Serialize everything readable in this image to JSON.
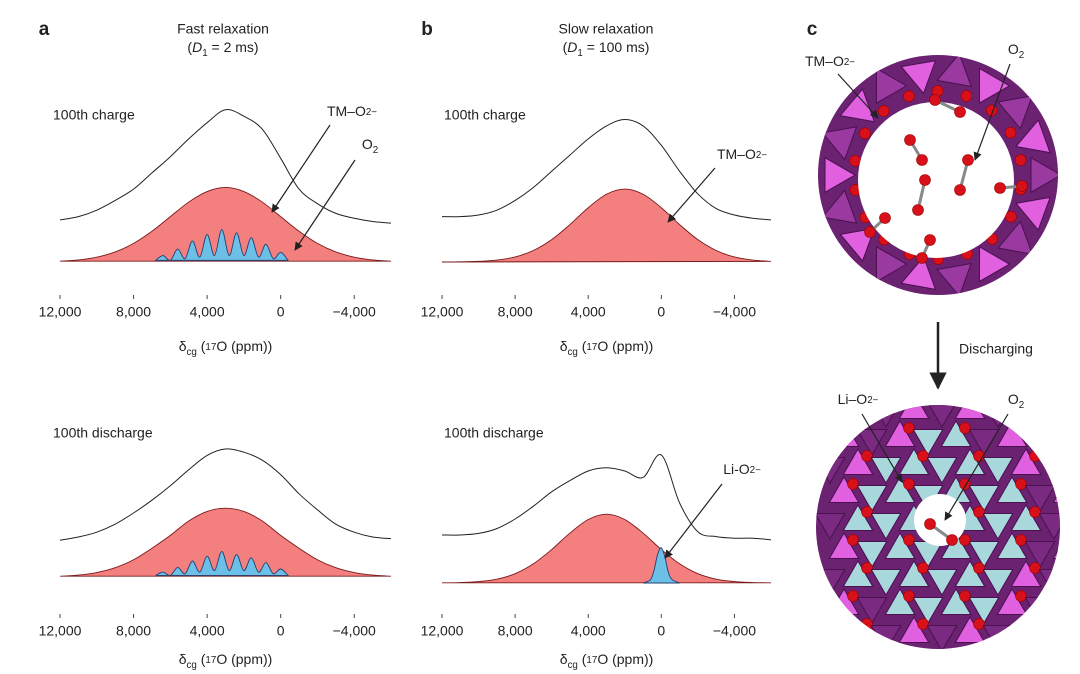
{
  "panels": [
    {
      "label": "a",
      "title": "Fast relaxation",
      "subtitle": [
        "(",
        "D",
        "1",
        " = 2 ms)"
      ]
    },
    {
      "label": "b",
      "title": "Slow relaxation",
      "subtitle": [
        "(",
        "D",
        "1",
        " = 100 ms)"
      ]
    },
    {
      "label": "c",
      "labels": [
        [
          "TM–O",
          "2−"
        ],
        [
          "O",
          "2"
        ],
        [
          "Li–O",
          "2−"
        ],
        [
          "O",
          "2"
        ]
      ],
      "arrow_text": "Discharging"
    }
  ],
  "chart_data": [
    {
      "type": "line",
      "title": "100th charge",
      "xlabel": [
        "δ",
        "cg",
        " (",
        "17",
        "O (ppm))"
      ],
      "xlim": [
        12000,
        -6000
      ],
      "ylim": [
        0,
        1
      ],
      "xticks": [
        {
          "value": 12000,
          "label": "12,000"
        },
        {
          "value": 8000,
          "label": "8,000"
        },
        {
          "value": 4000,
          "label": "4,000"
        },
        0,
        {
          "value": -4000,
          "label": "−4,000"
        }
      ],
      "annotations": [
        [
          "TM–O",
          "2−"
        ],
        [
          "O",
          "2"
        ]
      ],
      "series": [
        {
          "style": "line",
          "color": "#222",
          "x": [
            12000,
            11000,
            10000,
            9000,
            8000,
            7000,
            6000,
            5000,
            4000,
            3000,
            2000,
            1000,
            0,
            -1000,
            -2000,
            -3000,
            -4000,
            -5000,
            -6000
          ],
          "values": [
            0.26,
            0.28,
            0.32,
            0.38,
            0.45,
            0.55,
            0.65,
            0.76,
            0.86,
            0.94,
            0.9,
            0.82,
            0.64,
            0.45,
            0.36,
            0.3,
            0.27,
            0.25,
            0.24
          ]
        },
        {
          "style": "area",
          "color": "#f47f7f",
          "x": [
            12000,
            11000,
            10000,
            9000,
            8000,
            7000,
            6000,
            5000,
            4000,
            3000,
            2000,
            1000,
            0,
            -1000,
            -2000,
            -3000,
            -4000,
            -5000,
            -6000
          ],
          "values": [
            0.005,
            0.013,
            0.03,
            0.062,
            0.115,
            0.19,
            0.28,
            0.37,
            0.435,
            0.46,
            0.435,
            0.37,
            0.28,
            0.19,
            0.115,
            0.062,
            0.03,
            0.013,
            0.005
          ]
        },
        {
          "style": "area",
          "color": "#6cc0e8",
          "x": [
            6800,
            6400,
            6000,
            5600,
            5200,
            4800,
            4400,
            4000,
            3600,
            3200,
            2800,
            2400,
            2000,
            1600,
            1200,
            800,
            400,
            0,
            -400
          ],
          "values": [
            0.01,
            0.04,
            0.01,
            0.08,
            0.02,
            0.13,
            0.03,
            0.17,
            0.04,
            0.2,
            0.04,
            0.18,
            0.04,
            0.15,
            0.03,
            0.11,
            0.02,
            0.06,
            0.01
          ]
        }
      ]
    },
    {
      "type": "line",
      "title": "100th discharge",
      "xlabel": [
        "δ",
        "cg",
        " (",
        "17",
        "O (ppm))"
      ],
      "xlim": [
        12000,
        -6000
      ],
      "ylim": [
        0,
        1
      ],
      "xticks": [
        {
          "value": 12000,
          "label": "12,000"
        },
        {
          "value": 8000,
          "label": "8,000"
        },
        {
          "value": 4000,
          "label": "4,000"
        },
        0,
        {
          "value": -4000,
          "label": "−4,000"
        }
      ],
      "annotations": [],
      "series": [
        {
          "style": "line",
          "color": "#222",
          "x": [
            12000,
            11000,
            10000,
            9000,
            8000,
            7000,
            6000,
            5000,
            4000,
            3000,
            2000,
            1000,
            0,
            -1000,
            -2000,
            -3000,
            -4000,
            -5000,
            -6000
          ],
          "values": [
            0.23,
            0.25,
            0.28,
            0.33,
            0.4,
            0.48,
            0.57,
            0.67,
            0.76,
            0.8,
            0.78,
            0.73,
            0.64,
            0.52,
            0.42,
            0.33,
            0.28,
            0.25,
            0.24
          ]
        },
        {
          "style": "area",
          "color": "#f47f7f",
          "x": [
            12000,
            11000,
            10000,
            9000,
            8000,
            7000,
            6000,
            5000,
            4000,
            3000,
            2000,
            1000,
            0,
            -1000,
            -2000,
            -3000,
            -4000,
            -5000,
            -6000
          ],
          "values": [
            0.005,
            0.012,
            0.028,
            0.058,
            0.108,
            0.18,
            0.26,
            0.35,
            0.41,
            0.43,
            0.41,
            0.35,
            0.26,
            0.18,
            0.108,
            0.058,
            0.028,
            0.012,
            0.005
          ]
        },
        {
          "style": "area",
          "color": "#6cc0e8",
          "x": [
            6800,
            6400,
            6000,
            5600,
            5200,
            4800,
            4400,
            4000,
            3600,
            3200,
            2800,
            2400,
            2000,
            1600,
            1200,
            800,
            400,
            0,
            -400
          ],
          "values": [
            0.01,
            0.03,
            0.01,
            0.06,
            0.02,
            0.1,
            0.03,
            0.13,
            0.04,
            0.16,
            0.04,
            0.14,
            0.04,
            0.12,
            0.03,
            0.09,
            0.02,
            0.05,
            0.01
          ]
        }
      ]
    },
    {
      "type": "line",
      "title": "100th charge",
      "xlabel": [
        "δ",
        "cg",
        " (",
        "17",
        "O (ppm))"
      ],
      "xlim": [
        12000,
        -6000
      ],
      "ylim": [
        0,
        1
      ],
      "xticks": [
        {
          "value": 12000,
          "label": "12,000"
        },
        {
          "value": 8000,
          "label": "8,000"
        },
        {
          "value": 4000,
          "label": "4,000"
        },
        0,
        {
          "value": -4000,
          "label": "−4,000"
        }
      ],
      "annotations": [
        [
          "TM–O",
          "2−"
        ]
      ],
      "series": [
        {
          "style": "line",
          "color": "#222",
          "x": [
            12000,
            11000,
            10000,
            9000,
            8000,
            7000,
            6000,
            5000,
            4000,
            3000,
            2000,
            1000,
            0,
            -1000,
            -2000,
            -3000,
            -4000,
            -5000,
            -6000
          ],
          "values": [
            0.28,
            0.28,
            0.29,
            0.32,
            0.38,
            0.46,
            0.56,
            0.66,
            0.76,
            0.84,
            0.88,
            0.84,
            0.72,
            0.56,
            0.42,
            0.33,
            0.29,
            0.27,
            0.26
          ]
        },
        {
          "style": "area",
          "color": "#f47f7f",
          "x": [
            12000,
            11000,
            10000,
            9000,
            8000,
            7000,
            6000,
            5000,
            4000,
            3000,
            2000,
            1000,
            0,
            -1000,
            -2000,
            -3000,
            -4000,
            -5000,
            -6000
          ],
          "values": [
            0,
            0.001,
            0.004,
            0.012,
            0.031,
            0.071,
            0.138,
            0.231,
            0.335,
            0.418,
            0.45,
            0.418,
            0.335,
            0.231,
            0.138,
            0.071,
            0.031,
            0.012,
            0.004
          ]
        }
      ]
    },
    {
      "type": "line",
      "title": "100th discharge",
      "xlabel": [
        "δ",
        "cg",
        " (",
        "17",
        "O (ppm))"
      ],
      "xlim": [
        12000,
        -6000
      ],
      "ylim": [
        0,
        1
      ],
      "xticks": [
        {
          "value": 12000,
          "label": "12,000"
        },
        {
          "value": 8000,
          "label": "8,000"
        },
        {
          "value": 4000,
          "label": "4,000"
        },
        0,
        {
          "value": -4000,
          "label": "−4,000"
        }
      ],
      "annotations": [
        [
          "Li-O",
          "2−"
        ]
      ],
      "series": [
        {
          "style": "line",
          "color": "#222",
          "x": [
            12000,
            11000,
            10000,
            9000,
            8000,
            7000,
            6000,
            5000,
            4000,
            3000,
            2000,
            1000,
            0,
            -1000,
            -2000,
            -3000,
            -4000,
            -5000,
            -6000
          ],
          "values": [
            0.3,
            0.3,
            0.31,
            0.34,
            0.4,
            0.48,
            0.57,
            0.64,
            0.7,
            0.72,
            0.7,
            0.66,
            0.8,
            0.5,
            0.32,
            0.29,
            0.28,
            0.28,
            0.27
          ]
        },
        {
          "style": "area",
          "color": "#f47f7f",
          "x": [
            12000,
            11000,
            10000,
            9000,
            8000,
            7000,
            6000,
            5000,
            4000,
            3000,
            2000,
            1000,
            0,
            -1000,
            -2000,
            -3000,
            -4000,
            -5000,
            -6000
          ],
          "values": [
            0.001,
            0.003,
            0.009,
            0.024,
            0.058,
            0.12,
            0.209,
            0.312,
            0.397,
            0.43,
            0.397,
            0.312,
            0.209,
            0.12,
            0.058,
            0.024,
            0.009,
            0.003,
            0.001
          ]
        },
        {
          "style": "area",
          "color": "#6cc0e8",
          "x": [
            1000,
            600,
            400,
            200,
            0,
            -200,
            -400,
            -600,
            -1000
          ],
          "values": [
            0,
            0.02,
            0.08,
            0.18,
            0.22,
            0.16,
            0.06,
            0.02,
            0
          ]
        }
      ]
    }
  ]
}
